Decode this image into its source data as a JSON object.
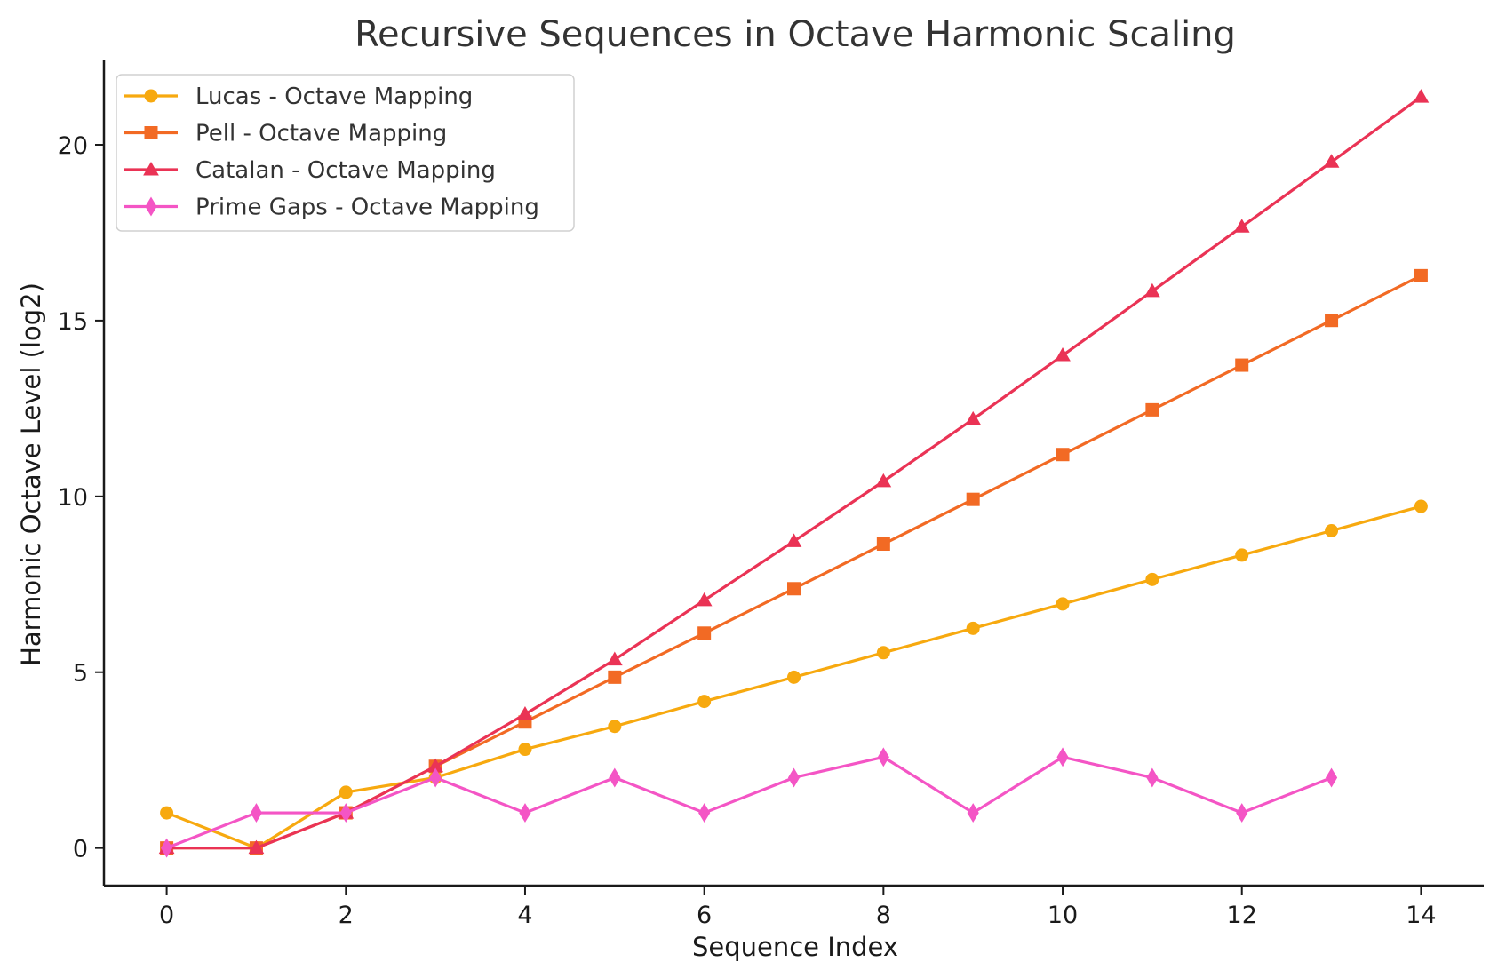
{
  "chart_data": {
    "type": "line",
    "title": "Recursive Sequences in Octave Harmonic Scaling",
    "xlabel": "Sequence Index",
    "ylabel": "Harmonic Octave Level (log2)",
    "xlim": [
      -0.7,
      14.7
    ],
    "ylim": [
      -1.07,
      22.4
    ],
    "x_ticks": [
      0,
      2,
      4,
      6,
      8,
      10,
      12,
      14
    ],
    "y_ticks": [
      0,
      5,
      10,
      15,
      20
    ],
    "grid": false,
    "legend_position": "top-left",
    "series": [
      {
        "name": "Lucas - Octave Mapping",
        "color": "#f7a90f",
        "marker": "circle",
        "x": [
          0,
          1,
          2,
          3,
          4,
          5,
          6,
          7,
          8,
          9,
          10,
          11,
          12,
          13,
          14
        ],
        "values": [
          1.0,
          0.0,
          1.585,
          2.0,
          2.807,
          3.459,
          4.17,
          4.858,
          5.555,
          6.248,
          6.941,
          7.637,
          8.33,
          9.023,
          9.717
        ]
      },
      {
        "name": "Pell - Octave Mapping",
        "color": "#f26a24",
        "marker": "square",
        "x": [
          0,
          1,
          2,
          3,
          4,
          5,
          6,
          7,
          8,
          9,
          10,
          11,
          12,
          13,
          14
        ],
        "values": [
          0.0,
          0.0,
          1.0,
          2.322,
          3.585,
          4.858,
          6.11,
          7.374,
          8.644,
          9.915,
          11.19,
          12.462,
          13.733,
          15.005,
          16.277
        ]
      },
      {
        "name": "Catalan - Octave Mapping",
        "color": "#ea3355",
        "marker": "triangle",
        "x": [
          0,
          1,
          2,
          3,
          4,
          5,
          6,
          7,
          8,
          9,
          10,
          11,
          12,
          13,
          14
        ],
        "values": [
          0.0,
          0.0,
          1.0,
          2.322,
          3.807,
          5.358,
          7.044,
          8.724,
          10.428,
          12.196,
          14.011,
          15.836,
          17.67,
          19.513,
          21.362
        ]
      },
      {
        "name": "Prime Gaps - Octave Mapping",
        "color": "#f455c5",
        "marker": "diamond",
        "x": [
          0,
          1,
          2,
          3,
          4,
          5,
          6,
          7,
          8,
          9,
          10,
          11,
          12,
          13
        ],
        "values": [
          0.0,
          1.0,
          1.0,
          2.0,
          1.0,
          2.0,
          1.0,
          2.0,
          2.585,
          1.0,
          2.585,
          2.0,
          1.0,
          2.0
        ]
      }
    ]
  }
}
